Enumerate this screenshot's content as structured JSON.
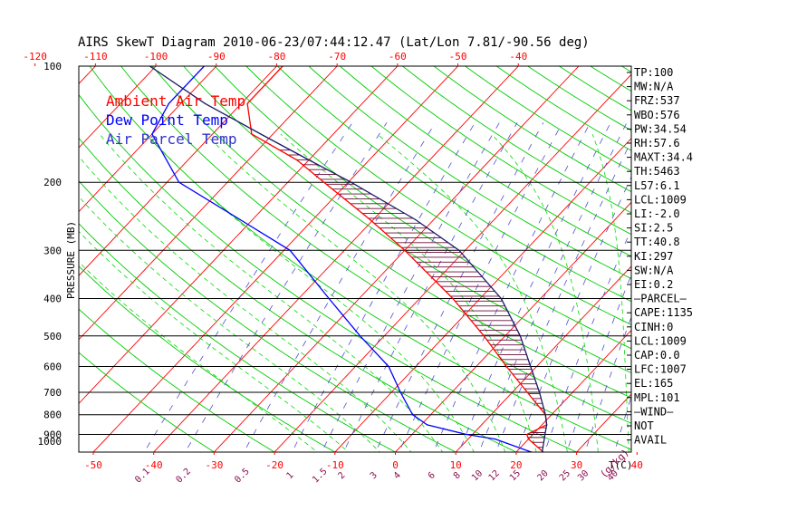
{
  "chart_data": {
    "type": "line",
    "title": "AIRS SkewT Diagram 2010-06-23/07:44:12.47 (Lat/Lon 7.81/-90.56 deg)",
    "ylabel": "PRESSURE (MB)",
    "xlabel": "T(C)",
    "mixing_ratio_label": "(g/kg)",
    "y_scale": "log",
    "ylim": [
      1000,
      100
    ],
    "xlim": [
      -50,
      40
    ],
    "grid": true,
    "pressure_ticks": [
      100,
      200,
      300,
      400,
      500,
      600,
      700,
      800,
      900,
      1000
    ],
    "bottom_temp_ticks": [
      -50,
      -40,
      -30,
      -20,
      -10,
      0,
      10,
      20,
      30,
      40
    ],
    "top_temp_ticks": [
      -120,
      -110,
      -100,
      -90,
      -80,
      -70,
      -60,
      -50,
      -40
    ],
    "mixing_ratio_ticks": [
      "0.1",
      "0.2",
      "0.5",
      "1",
      "1.5",
      "2",
      "3",
      "4",
      "6",
      "8",
      "10",
      "12",
      "15",
      "20",
      "25",
      "30",
      "40"
    ],
    "legend": [
      {
        "label": "Ambient Air Temp",
        "color": "#ff0000"
      },
      {
        "label": "Dew Point Temp",
        "color": "#0000ff"
      },
      {
        "label": "Air Parcel Temp",
        "color": "#3333cc"
      }
    ],
    "legend_position": "top-left",
    "colors": {
      "isotherm": "#ff0000",
      "dry_adiabat": "#00cc00",
      "moist_adiabat": "#00dd00",
      "mixing_ratio": "#5050cc",
      "isobar": "#000000",
      "cape_hatch": "#6a0c3a",
      "parcel": "#1a1a66"
    },
    "series": [
      {
        "name": "Ambient Air Temp",
        "points": [
          [
            1000,
            24.5
          ],
          [
            925,
            20.0
          ],
          [
            900,
            19.0
          ],
          [
            850,
            20.8
          ],
          [
            800,
            19.0
          ],
          [
            700,
            12.5
          ],
          [
            600,
            5.0
          ],
          [
            500,
            -3.5
          ],
          [
            400,
            -14.5
          ],
          [
            300,
            -30.0
          ],
          [
            250,
            -40.5
          ],
          [
            200,
            -54.0
          ],
          [
            175,
            -62.0
          ],
          [
            150,
            -73.5
          ],
          [
            125,
            -79.0
          ],
          [
            100,
            -79.0
          ]
        ]
      },
      {
        "name": "Dew Point Temp",
        "points": [
          [
            1000,
            22.5
          ],
          [
            925,
            14.5
          ],
          [
            900,
            9.0
          ],
          [
            850,
            1.0
          ],
          [
            800,
            -3.0
          ],
          [
            700,
            -8.5
          ],
          [
            600,
            -14.5
          ],
          [
            500,
            -24.0
          ],
          [
            400,
            -35.0
          ],
          [
            300,
            -49.0
          ],
          [
            250,
            -62.0
          ],
          [
            200,
            -78.0
          ],
          [
            150,
            -90.0
          ],
          [
            125,
            -92.0
          ],
          [
            100,
            -92.0
          ]
        ]
      },
      {
        "name": "Air Parcel Temp",
        "points": [
          [
            1000,
            24.3
          ],
          [
            925,
            22.6
          ],
          [
            900,
            22.0
          ],
          [
            850,
            20.8
          ],
          [
            800,
            19.0
          ],
          [
            700,
            14.5
          ],
          [
            600,
            9.0
          ],
          [
            500,
            2.5
          ],
          [
            400,
            -6.5
          ],
          [
            300,
            -21.0
          ],
          [
            250,
            -33.0
          ],
          [
            200,
            -49.5
          ],
          [
            175,
            -60.0
          ],
          [
            150,
            -72.0
          ],
          [
            125,
            -86.0
          ],
          [
            100,
            -101.0
          ]
        ]
      }
    ],
    "indices": [
      "TP:100",
      "MW:N/A",
      "FRZ:537",
      "WBO:576",
      "PW:34.54",
      "RH:57.6",
      "MAXT:34.4",
      "TH:5463",
      "L57:6.1",
      "LCL:1009",
      "LI:-2.0",
      "SI:2.5",
      "TT:40.8",
      "KI:297",
      "SW:N/A",
      "EI:0.2",
      "—PARCEL—",
      "CAPE:1135",
      "CINH:0",
      "LCL:1009",
      "CAP:0.0",
      "LFC:1007",
      "EL:165",
      "MPL:101",
      "—WIND—",
      "NOT",
      "AVAIL"
    ]
  }
}
